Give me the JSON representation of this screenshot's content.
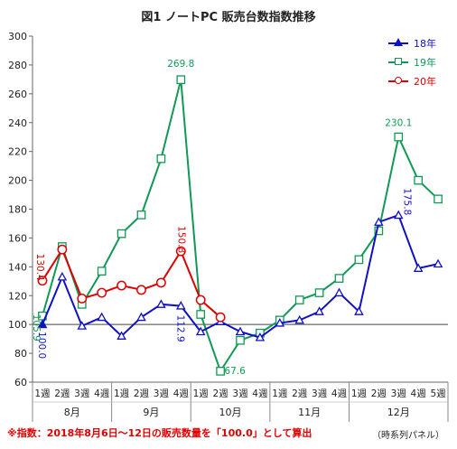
{
  "title": "図1 ノートPC 販売台数指数推移",
  "note": "※指数：2018年8月6日～12日の販売数量を「100.0」として算出",
  "source": "（時系列パネル）",
  "chart_data": {
    "type": "line",
    "title": "図1 ノートPC 販売台数指数推移",
    "x": [
      "1週",
      "2週",
      "3週",
      "4週",
      "1週",
      "2週",
      "3週",
      "4週",
      "1週",
      "2週",
      "3週",
      "4週",
      "1週",
      "2週",
      "3週",
      "4週",
      "1週",
      "2週",
      "3週",
      "4週",
      "5週"
    ],
    "month_groups": [
      {
        "label": "8月",
        "weeks": 4
      },
      {
        "label": "9月",
        "weeks": 4
      },
      {
        "label": "10月",
        "weeks": 4
      },
      {
        "label": "11月",
        "weeks": 4
      },
      {
        "label": "12月",
        "weeks": 5
      }
    ],
    "ylim": [
      60,
      300
    ],
    "yticks": [
      60,
      80,
      100,
      120,
      140,
      160,
      180,
      200,
      220,
      240,
      260,
      280,
      300
    ],
    "grid": false,
    "reference_line": 100,
    "legend_position": "top-right",
    "series": [
      {
        "name": "18年",
        "color": "#1010c8",
        "marker": "triangle",
        "values": [
          100.0,
          133,
          99,
          105,
          92,
          105,
          114,
          112.9,
          95,
          102,
          95,
          91,
          101,
          103,
          109,
          122,
          109,
          171,
          175.8,
          139,
          142
        ]
      },
      {
        "name": "19年",
        "color": "#119955",
        "marker": "square",
        "values": [
          105.9,
          154,
          114,
          137,
          163,
          176,
          215,
          269.8,
          107,
          67.6,
          89,
          94,
          103,
          117,
          122,
          132,
          145,
          165,
          230.1,
          200,
          187
        ]
      },
      {
        "name": "20年",
        "color": "#dd0000",
        "marker": "circle",
        "values": [
          130.4,
          152,
          118,
          122,
          127,
          124,
          129,
          150.8,
          117,
          105,
          null,
          null,
          null,
          null,
          null,
          null,
          null,
          null,
          null,
          null,
          null
        ]
      }
    ],
    "annotations": [
      {
        "text": "100.0",
        "series": 0,
        "index": 0,
        "color": "#1010c8"
      },
      {
        "text": "105.9",
        "series": 1,
        "index": 0,
        "color": "#119955"
      },
      {
        "text": "130.4",
        "series": 2,
        "index": 0,
        "color": "#dd0000"
      },
      {
        "text": "269.8",
        "series": 1,
        "index": 7,
        "color": "#119955"
      },
      {
        "text": "150.8",
        "series": 2,
        "index": 7,
        "color": "#dd0000"
      },
      {
        "text": "112.9",
        "series": 0,
        "index": 7,
        "color": "#1010c8"
      },
      {
        "text": "67.6",
        "series": 1,
        "index": 9,
        "color": "#119955"
      },
      {
        "text": "230.1",
        "series": 1,
        "index": 18,
        "color": "#119955"
      },
      {
        "text": "175.8",
        "series": 0,
        "index": 18,
        "color": "#1010c8"
      }
    ]
  }
}
